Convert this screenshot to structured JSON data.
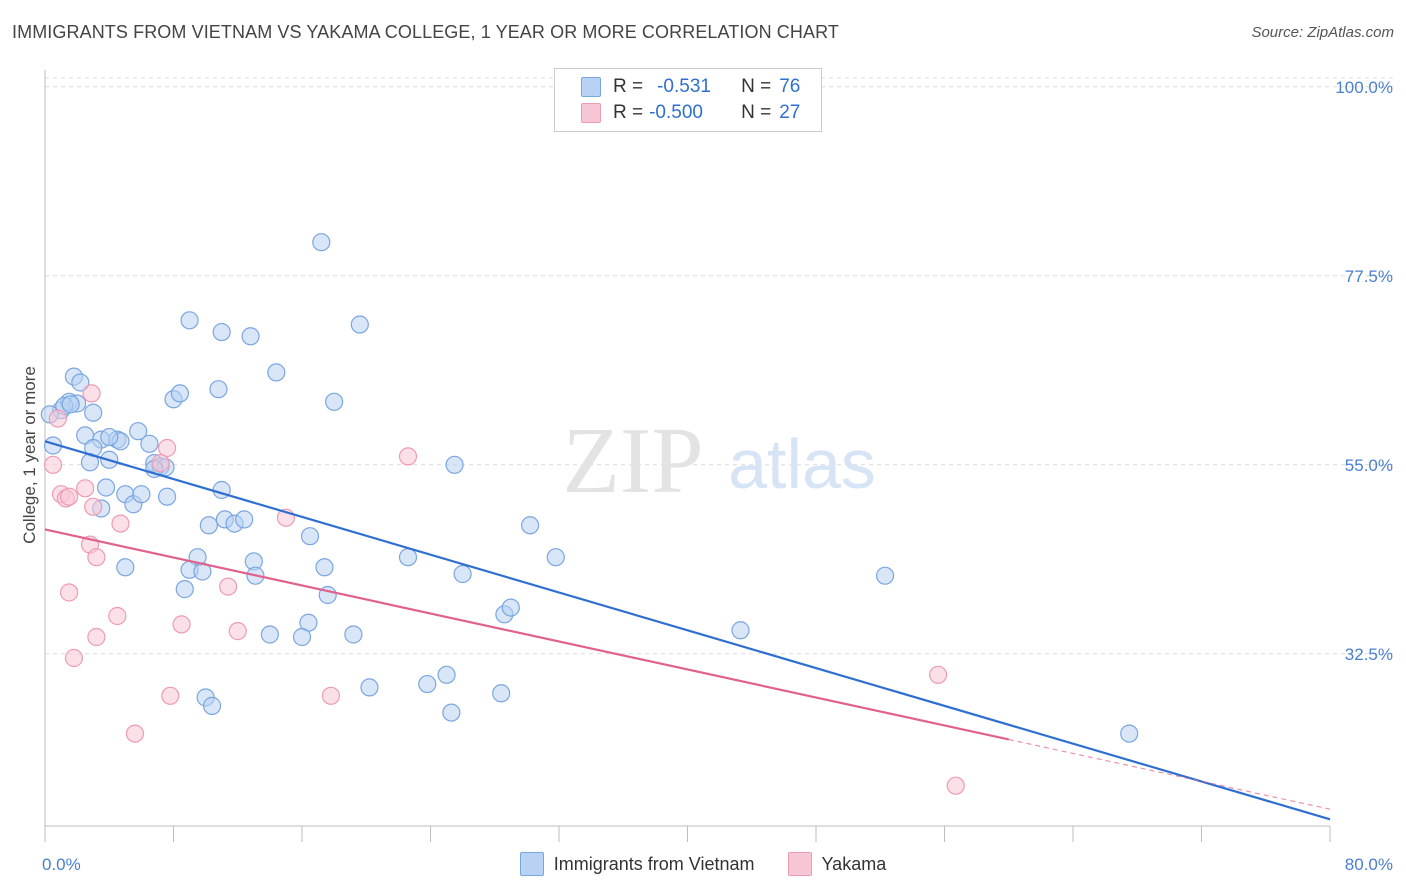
{
  "header": {
    "title": "IMMIGRANTS FROM VIETNAM VS YAKAMA COLLEGE, 1 YEAR OR MORE CORRELATION CHART",
    "source": "Source: ZipAtlas.com"
  },
  "watermark": {
    "zip": "ZIP",
    "atlas": "atlas"
  },
  "legend_top": {
    "rows": [
      {
        "r_label": "R =",
        "r_value": "-0.531",
        "n_label": "N =",
        "n_value": "76"
      },
      {
        "r_label": "R =",
        "r_value": "-0.500",
        "n_label": "N =",
        "n_value": "27"
      }
    ]
  },
  "colors": {
    "blue_fill": "#b8d2f3",
    "blue_stroke": "#7aa6e0",
    "blue_line": "#2e6fd1",
    "pink_fill": "#f7c6d5",
    "pink_stroke": "#ee9bb4",
    "pink_line": "#e0628c"
  },
  "chart_data": {
    "type": "scatter",
    "title": "IMMIGRANTS FROM VIETNAM VS YAKAMA COLLEGE, 1 YEAR OR MORE CORRELATION CHART",
    "xlabel": "",
    "ylabel": "College, 1 year or more",
    "xlim": [
      0,
      80
    ],
    "ylim": [
      12,
      102
    ],
    "x_tick_labels": [
      "0.0%",
      "80.0%"
    ],
    "y_ticks": [
      32.5,
      55.0,
      77.5,
      100.0
    ],
    "y_tick_labels": [
      "32.5%",
      "55.0%",
      "77.5%",
      "100.0%"
    ],
    "grid": true,
    "legend_position": "top-center",
    "series": [
      {
        "name": "Immigrants from Vietnam",
        "color": "#7aa6e0",
        "trend": {
          "x": [
            0,
            80
          ],
          "y": [
            57.8,
            12.8
          ]
        },
        "points": [
          [
            0.5,
            57.3
          ],
          [
            1.0,
            61.5
          ],
          [
            1.5,
            62.5
          ],
          [
            2.0,
            62.3
          ],
          [
            1.2,
            62.0
          ],
          [
            1.8,
            65.5
          ],
          [
            2.2,
            64.8
          ],
          [
            3.0,
            61.2
          ],
          [
            2.5,
            58.5
          ],
          [
            3.5,
            58.0
          ],
          [
            3.0,
            57.0
          ],
          [
            2.8,
            55.3
          ],
          [
            4.0,
            55.6
          ],
          [
            4.5,
            58.0
          ],
          [
            4.7,
            57.8
          ],
          [
            3.8,
            52.3
          ],
          [
            3.5,
            49.8
          ],
          [
            5.0,
            51.5
          ],
          [
            5.5,
            50.3
          ],
          [
            6.0,
            51.5
          ],
          [
            5.8,
            59.0
          ],
          [
            6.5,
            57.5
          ],
          [
            6.8,
            55.2
          ],
          [
            7.2,
            54.8
          ],
          [
            7.5,
            54.7
          ],
          [
            7.6,
            51.2
          ],
          [
            8.0,
            62.8
          ],
          [
            8.4,
            63.5
          ],
          [
            9.0,
            72.2
          ],
          [
            11.0,
            70.8
          ],
          [
            12.8,
            70.3
          ],
          [
            10.8,
            64.0
          ],
          [
            14.4,
            66.0
          ],
          [
            17.2,
            81.5
          ],
          [
            18.0,
            62.5
          ],
          [
            19.6,
            71.7
          ],
          [
            11.0,
            52.0
          ],
          [
            10.2,
            47.8
          ],
          [
            11.2,
            48.5
          ],
          [
            11.8,
            48.0
          ],
          [
            12.4,
            48.5
          ],
          [
            9.5,
            44.0
          ],
          [
            9.0,
            42.5
          ],
          [
            9.8,
            42.3
          ],
          [
            8.7,
            40.2
          ],
          [
            5.0,
            42.8
          ],
          [
            13.0,
            43.5
          ],
          [
            13.1,
            41.8
          ],
          [
            16.5,
            46.5
          ],
          [
            17.4,
            42.8
          ],
          [
            17.6,
            39.5
          ],
          [
            22.6,
            44.0
          ],
          [
            25.5,
            55.0
          ],
          [
            26.0,
            42.0
          ],
          [
            28.6,
            37.2
          ],
          [
            29.0,
            38.0
          ],
          [
            30.2,
            47.8
          ],
          [
            31.8,
            44.0
          ],
          [
            43.3,
            35.3
          ],
          [
            52.3,
            41.8
          ],
          [
            67.5,
            23.0
          ],
          [
            14.0,
            34.8
          ],
          [
            16.4,
            36.2
          ],
          [
            16.0,
            34.5
          ],
          [
            19.2,
            34.8
          ],
          [
            20.2,
            28.5
          ],
          [
            23.8,
            28.9
          ],
          [
            25.0,
            30.0
          ],
          [
            25.3,
            25.5
          ],
          [
            28.4,
            27.8
          ],
          [
            10.0,
            27.3
          ],
          [
            10.4,
            26.3
          ],
          [
            4.0,
            58.3
          ],
          [
            1.6,
            62.2
          ],
          [
            0.3,
            61.0
          ],
          [
            6.8,
            54.5
          ]
        ]
      },
      {
        "name": "Yakama",
        "color": "#ee9bb4",
        "trend": {
          "x": [
            0,
            60
          ],
          "y": [
            47.3,
            22.3
          ]
        },
        "trend_dashed": {
          "x": [
            60,
            80
          ],
          "y": [
            22.3,
            14.0
          ]
        },
        "points": [
          [
            0.5,
            55.0
          ],
          [
            0.8,
            60.5
          ],
          [
            1.0,
            51.5
          ],
          [
            1.3,
            51.0
          ],
          [
            1.5,
            51.2
          ],
          [
            2.5,
            52.2
          ],
          [
            3.0,
            50.0
          ],
          [
            2.8,
            45.5
          ],
          [
            3.2,
            44.0
          ],
          [
            4.7,
            48.0
          ],
          [
            4.5,
            37.0
          ],
          [
            3.2,
            34.5
          ],
          [
            1.5,
            39.8
          ],
          [
            1.8,
            32.0
          ],
          [
            2.9,
            63.5
          ],
          [
            7.6,
            57.0
          ],
          [
            7.2,
            55.2
          ],
          [
            7.8,
            27.5
          ],
          [
            8.5,
            36.0
          ],
          [
            11.4,
            40.5
          ],
          [
            12.0,
            35.2
          ],
          [
            15.0,
            48.7
          ],
          [
            17.8,
            27.5
          ],
          [
            22.6,
            56.0
          ],
          [
            5.6,
            23.0
          ],
          [
            55.6,
            30.0
          ],
          [
            56.7,
            16.8
          ]
        ]
      }
    ]
  },
  "legend_bottom": {
    "items": [
      {
        "label": "Immigrants from Vietnam"
      },
      {
        "label": "Yakama"
      }
    ]
  }
}
